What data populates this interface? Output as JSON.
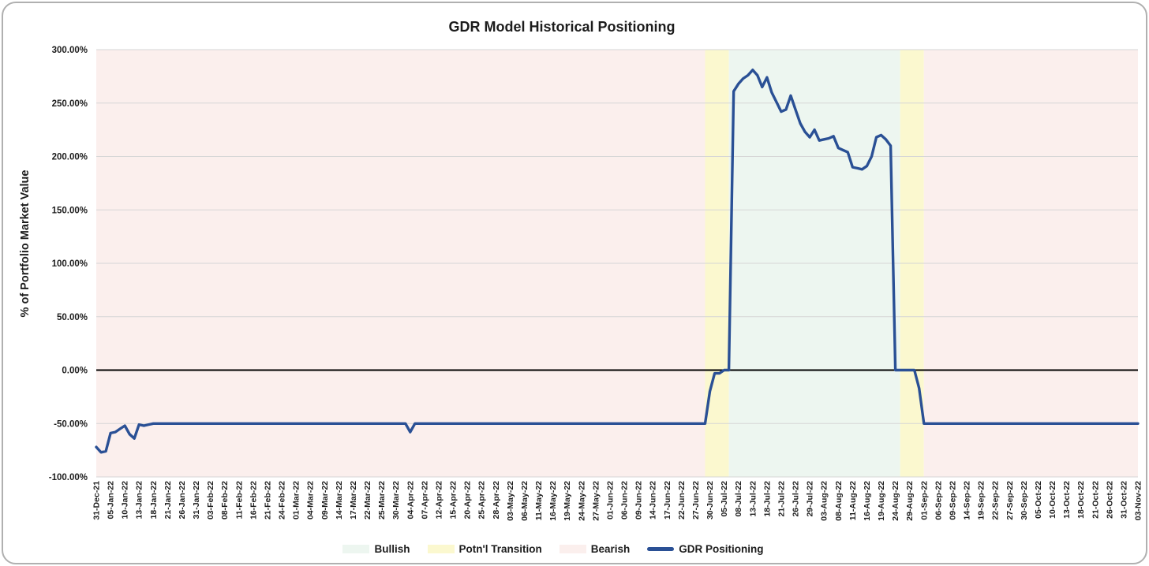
{
  "chart": {
    "title": "GDR Model Historical Positioning",
    "y_axis_title": "% of Portfolio Market Value",
    "legend": [
      {
        "label": "Bullish",
        "type": "swatch",
        "color": "#edf6f0"
      },
      {
        "label": "Potn'l Transition",
        "type": "swatch",
        "color": "#fbf8cf"
      },
      {
        "label": "Bearish",
        "type": "swatch",
        "color": "#fbefed"
      },
      {
        "label": "GDR Positioning",
        "type": "line",
        "color": "#2a5095"
      }
    ]
  },
  "chart_data": {
    "type": "line",
    "title": "GDR Model Historical Positioning",
    "ylabel": "% of Portfolio Market Value",
    "ylim": [
      -100,
      300
    ],
    "grid": true,
    "legend_position": "bottom",
    "colors": {
      "bearish": "#fbefed",
      "transition": "#fbf8cf",
      "bullish": "#edf6f0",
      "line": "#2a5095",
      "grid": "#d6d6d6",
      "zero_line": "#000000",
      "text": "#1c1c1c"
    },
    "y_ticks": [
      {
        "label": "300.00%",
        "value": 300
      },
      {
        "label": "250.00%",
        "value": 250
      },
      {
        "label": "200.00%",
        "value": 200
      },
      {
        "label": "150.00%",
        "value": 150
      },
      {
        "label": "100.00%",
        "value": 100
      },
      {
        "label": "50.00%",
        "value": 50
      },
      {
        "label": "0.00%",
        "value": 0
      },
      {
        "label": "-50.00%",
        "value": -50
      },
      {
        "label": "-100.00%",
        "value": -100
      }
    ],
    "x_axis": {
      "start": "31-Dec-21",
      "end": "03-Nov-22",
      "frequency": "weekdays",
      "label_every": 3
    },
    "x_tick_labels": [
      "31-Dec-21",
      "05-Jan-22",
      "10-Jan-22",
      "13-Jan-22",
      "18-Jan-22",
      "21-Jan-22",
      "26-Jan-22",
      "31-Jan-22",
      "03-Feb-22",
      "08-Feb-22",
      "11-Feb-22",
      "16-Feb-22",
      "21-Feb-22",
      "24-Feb-22",
      "01-Mar-22",
      "04-Mar-22",
      "09-Mar-22",
      "14-Mar-22",
      "17-Mar-22",
      "22-Mar-22",
      "25-Mar-22",
      "30-Mar-22",
      "04-Apr-22",
      "07-Apr-22",
      "12-Apr-22",
      "15-Apr-22",
      "20-Apr-22",
      "25-Apr-22",
      "28-Apr-22",
      "03-May-22",
      "06-May-22",
      "11-May-22",
      "16-May-22",
      "19-May-22",
      "24-May-22",
      "27-May-22",
      "01-Jun-22",
      "06-Jun-22",
      "09-Jun-22",
      "14-Jun-22",
      "17-Jun-22",
      "22-Jun-22",
      "27-Jun-22",
      "30-Jun-22",
      "05-Jul-22",
      "08-Jul-22",
      "13-Jul-22",
      "18-Jul-22",
      "21-Jul-22",
      "26-Jul-22",
      "29-Jul-22",
      "03-Aug-22",
      "08-Aug-22",
      "11-Aug-22",
      "16-Aug-22",
      "19-Aug-22",
      "24-Aug-22",
      "29-Aug-22",
      "01-Sep-22",
      "06-Sep-22",
      "09-Sep-22",
      "14-Sep-22",
      "19-Sep-22",
      "22-Sep-22",
      "27-Sep-22",
      "30-Sep-22",
      "05-Oct-22",
      "10-Oct-22",
      "13-Oct-22",
      "18-Oct-22",
      "21-Oct-22",
      "26-Oct-22",
      "31-Oct-22",
      "03-Nov-22"
    ],
    "bands": [
      {
        "label": "Bearish",
        "from": "31-Dec-21",
        "to": "29-Jun-22",
        "color_key": "bearish"
      },
      {
        "label": "Potn'l Transition",
        "from": "29-Jun-22",
        "to": "06-Jul-22",
        "color_key": "transition"
      },
      {
        "label": "Bullish",
        "from": "06-Jul-22",
        "to": "25-Aug-22",
        "color_key": "bullish"
      },
      {
        "label": "Potn'l Transition",
        "from": "25-Aug-22",
        "to": "01-Sep-22",
        "color_key": "transition"
      },
      {
        "label": "Bearish",
        "from": "01-Sep-22",
        "to": "03-Nov-22",
        "color_key": "bearish"
      }
    ],
    "series": [
      {
        "name": "GDR Positioning",
        "color": "#2a5095",
        "unit": "% of portfolio market value",
        "keypoints": [
          {
            "d": "31-Dec-21",
            "v": -72
          },
          {
            "d": "03-Jan-22",
            "v": -77
          },
          {
            "d": "04-Jan-22",
            "v": -76
          },
          {
            "d": "05-Jan-22",
            "v": -59
          },
          {
            "d": "06-Jan-22",
            "v": -58
          },
          {
            "d": "07-Jan-22",
            "v": -55
          },
          {
            "d": "10-Jan-22",
            "v": -52
          },
          {
            "d": "11-Jan-22",
            "v": -60
          },
          {
            "d": "12-Jan-22",
            "v": -64
          },
          {
            "d": "13-Jan-22",
            "v": -51
          },
          {
            "d": "14-Jan-22",
            "v": -52
          },
          {
            "d": "17-Jan-22",
            "v": -51
          },
          {
            "d": "18-Jan-22",
            "v": -50
          },
          {
            "d": "01-Apr-22",
            "v": -50
          },
          {
            "d": "04-Apr-22",
            "v": -58
          },
          {
            "d": "05-Apr-22",
            "v": -50
          },
          {
            "d": "29-Jun-22",
            "v": -50
          },
          {
            "d": "30-Jun-22",
            "v": -20
          },
          {
            "d": "01-Jul-22",
            "v": -3
          },
          {
            "d": "04-Jul-22",
            "v": -3
          },
          {
            "d": "05-Jul-22",
            "v": 0
          },
          {
            "d": "06-Jul-22",
            "v": 0
          },
          {
            "d": "07-Jul-22",
            "v": 261
          },
          {
            "d": "08-Jul-22",
            "v": 268
          },
          {
            "d": "11-Jul-22",
            "v": 273
          },
          {
            "d": "12-Jul-22",
            "v": 276
          },
          {
            "d": "13-Jul-22",
            "v": 281
          },
          {
            "d": "14-Jul-22",
            "v": 276
          },
          {
            "d": "15-Jul-22",
            "v": 265
          },
          {
            "d": "18-Jul-22",
            "v": 274
          },
          {
            "d": "19-Jul-22",
            "v": 260
          },
          {
            "d": "20-Jul-22",
            "v": 251
          },
          {
            "d": "21-Jul-22",
            "v": 242
          },
          {
            "d": "22-Jul-22",
            "v": 244
          },
          {
            "d": "25-Jul-22",
            "v": 257
          },
          {
            "d": "26-Jul-22",
            "v": 244
          },
          {
            "d": "27-Jul-22",
            "v": 231
          },
          {
            "d": "28-Jul-22",
            "v": 223
          },
          {
            "d": "29-Jul-22",
            "v": 218
          },
          {
            "d": "01-Aug-22",
            "v": 225
          },
          {
            "d": "02-Aug-22",
            "v": 215
          },
          {
            "d": "03-Aug-22",
            "v": 216
          },
          {
            "d": "04-Aug-22",
            "v": 217
          },
          {
            "d": "05-Aug-22",
            "v": 219
          },
          {
            "d": "08-Aug-22",
            "v": 208
          },
          {
            "d": "09-Aug-22",
            "v": 206
          },
          {
            "d": "10-Aug-22",
            "v": 204
          },
          {
            "d": "11-Aug-22",
            "v": 190
          },
          {
            "d": "12-Aug-22",
            "v": 189
          },
          {
            "d": "15-Aug-22",
            "v": 188
          },
          {
            "d": "16-Aug-22",
            "v": 191
          },
          {
            "d": "17-Aug-22",
            "v": 200
          },
          {
            "d": "18-Aug-22",
            "v": 218
          },
          {
            "d": "19-Aug-22",
            "v": 220
          },
          {
            "d": "22-Aug-22",
            "v": 216
          },
          {
            "d": "23-Aug-22",
            "v": 210
          },
          {
            "d": "24-Aug-22",
            "v": 0
          },
          {
            "d": "30-Aug-22",
            "v": 0
          },
          {
            "d": "31-Aug-22",
            "v": -17
          },
          {
            "d": "01-Sep-22",
            "v": -50
          },
          {
            "d": "03-Nov-22",
            "v": -50
          }
        ]
      }
    ]
  }
}
